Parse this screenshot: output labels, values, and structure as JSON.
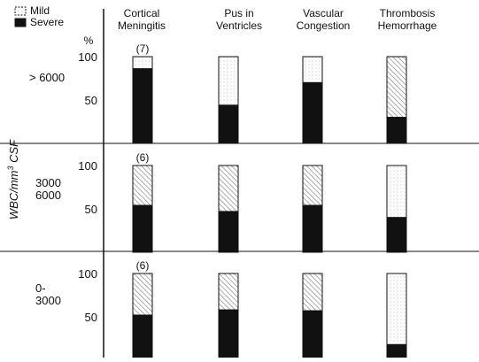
{
  "chart_data": {
    "type": "bar",
    "stacked": true,
    "legend": {
      "position": "top-left",
      "entries": [
        {
          "name": "Mild",
          "style": "dotted",
          "color": "#ffffff"
        },
        {
          "name": "Severe",
          "style": "solid",
          "color": "#111111"
        }
      ]
    },
    "categories": [
      {
        "line1": "Cortical",
        "line2": "Meningitis"
      },
      {
        "line1": "Pus in",
        "line2": "Ventricles"
      },
      {
        "line1": "Vascular",
        "line2": "Congestion"
      },
      {
        "line1": "Thrombosis",
        "line2": "Hemorrhage"
      }
    ],
    "ylabel_main": "WBC/mm",
    "ylabel_sup": "3",
    "ylabel_tail": " CSF",
    "yunit": "%",
    "yticks": [
      "100",
      "50"
    ],
    "ylim": [
      0,
      100
    ],
    "panels": [
      {
        "group_label": [
          "> 6000"
        ],
        "n_label": "(7)",
        "severe": [
          86,
          44,
          70,
          30
        ],
        "mild_hatch": [
          false,
          false,
          false,
          true
        ],
        "mild": [
          14,
          56,
          30,
          70
        ]
      },
      {
        "group_label": [
          "3000",
          "6000"
        ],
        "n_label": "(6)",
        "severe": [
          54,
          47,
          54,
          40
        ],
        "mild_hatch": [
          true,
          true,
          true,
          false
        ],
        "mild": [
          46,
          53,
          46,
          60
        ]
      },
      {
        "group_label": [
          "0-",
          "3000"
        ],
        "n_label": "(6)",
        "severe": [
          52,
          58,
          57,
          18
        ],
        "mild_hatch": [
          true,
          true,
          true,
          false
        ],
        "mild": [
          48,
          42,
          43,
          82
        ]
      }
    ]
  }
}
